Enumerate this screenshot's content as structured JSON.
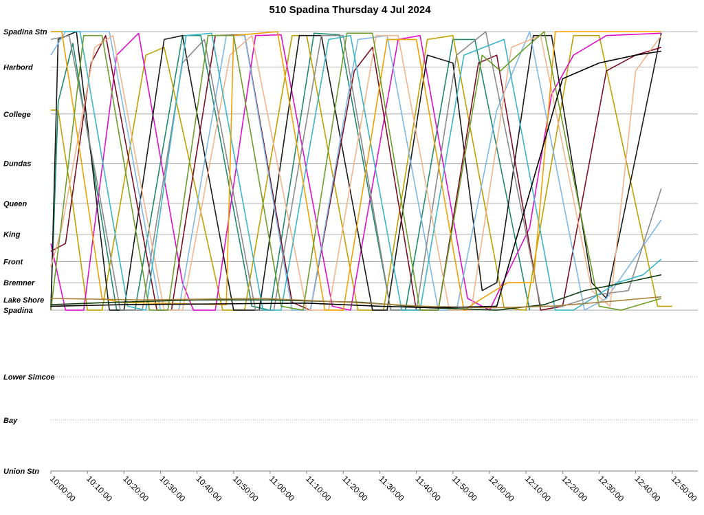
{
  "chart_data": {
    "type": "line",
    "title": "510 Spadina Thursday 4 Jul 2024",
    "x_axis": {
      "unit": "time of day",
      "min": "10:00:00",
      "max": "12:57:00",
      "tick_labels": [
        "10:00:00",
        "10:10:00",
        "10:20:00",
        "10:30:00",
        "10:40:00",
        "10:50:00",
        "11:00:00",
        "11:10:00",
        "11:20:00",
        "11:30:00",
        "11:40:00",
        "11:50:00",
        "12:00:00",
        "12:10:00",
        "12:20:00",
        "12:30:00",
        "12:40:00",
        "12:50:00"
      ]
    },
    "y_axis": {
      "unit": "stop (distance along route, km)",
      "stops": [
        {
          "name": "Spadina Stn",
          "km": 0.0,
          "line": "solid"
        },
        {
          "name": "Harbord",
          "km": 0.45,
          "line": "solid"
        },
        {
          "name": "College",
          "km": 1.05,
          "line": "solid"
        },
        {
          "name": "Dundas",
          "km": 1.68,
          "line": "solid"
        },
        {
          "name": "Queen",
          "km": 2.19,
          "line": "solid"
        },
        {
          "name": "King",
          "km": 2.58,
          "line": "solid"
        },
        {
          "name": "Front",
          "km": 2.93,
          "line": "solid"
        },
        {
          "name": "Bremner",
          "km": 3.2,
          "line": "solid"
        },
        {
          "name": "Lake Shore",
          "km": 3.42,
          "line": "none"
        },
        {
          "name": "Spadina",
          "km": 3.55,
          "line": "solid"
        },
        {
          "name": "Lower Simcoe",
          "km": 4.4,
          "line": "dotted"
        },
        {
          "name": "Bay",
          "km": 4.95,
          "line": "dotted"
        },
        {
          "name": "Union Stn",
          "km": 5.6,
          "line": "none"
        }
      ]
    },
    "series": [
      {
        "color": "#1f8a6e",
        "points": [
          [
            0,
            3.52
          ],
          [
            2,
            0.9
          ],
          [
            6,
            0.15
          ],
          [
            18,
            3.55
          ],
          [
            23,
            3.55
          ],
          [
            36,
            0.05
          ],
          [
            41,
            0.05
          ],
          [
            55,
            3.5
          ],
          [
            60,
            3.55
          ],
          [
            72,
            0.02
          ],
          [
            79,
            0.04
          ],
          [
            93,
            3.55
          ],
          [
            97,
            3.55
          ],
          [
            110,
            0.1
          ],
          [
            116,
            0.1
          ],
          [
            131,
            3.55
          ]
        ]
      },
      {
        "color": "#c0a000",
        "points": [
          [
            0,
            1.0
          ],
          [
            2,
            1.0
          ],
          [
            6,
            2.2
          ],
          [
            10,
            3.55
          ],
          [
            14,
            3.55
          ],
          [
            26,
            0.3
          ],
          [
            31,
            0.2
          ],
          [
            47,
            3.55
          ],
          [
            53,
            3.55
          ],
          [
            66,
            0.05
          ],
          [
            70,
            0.05
          ],
          [
            84,
            3.55
          ],
          [
            91,
            3.55
          ],
          [
            103,
            0.1
          ],
          [
            110,
            0.05
          ],
          [
            124,
            3.52
          ],
          [
            130,
            3.55
          ],
          [
            143,
            0.05
          ],
          [
            150,
            0.05
          ],
          [
            166,
            3.5
          ],
          [
            170,
            3.5
          ]
        ]
      },
      {
        "color": "#e010c8",
        "points": [
          [
            0,
            2.7
          ],
          [
            4,
            3.55
          ],
          [
            9,
            3.55
          ],
          [
            18,
            0.3
          ],
          [
            24,
            0.02
          ],
          [
            36,
            3.2
          ],
          [
            39,
            3.55
          ],
          [
            45,
            3.55
          ],
          [
            56,
            0.05
          ],
          [
            63,
            0.04
          ],
          [
            77,
            3.5
          ],
          [
            82,
            3.55
          ],
          [
            95,
            0.1
          ],
          [
            101,
            0.05
          ],
          [
            114,
            3.4
          ],
          [
            120,
            3.55
          ],
          [
            131,
            2.5
          ],
          [
            137,
            0.8
          ],
          [
            143,
            0.3
          ],
          [
            152,
            0.05
          ],
          [
            167,
            0.02
          ]
        ]
      },
      {
        "color": "#1a1a1a",
        "points": [
          [
            0,
            3.55
          ],
          [
            2,
            0.1
          ],
          [
            7,
            0.0
          ],
          [
            16,
            3.55
          ],
          [
            20,
            3.55
          ],
          [
            31,
            0.1
          ],
          [
            36,
            0.05
          ],
          [
            50,
            3.55
          ],
          [
            57,
            3.55
          ],
          [
            68,
            0.05
          ],
          [
            74,
            0.05
          ],
          [
            88,
            3.55
          ],
          [
            92,
            3.55
          ],
          [
            103,
            0.3
          ],
          [
            110,
            0.4
          ],
          [
            118,
            3.3
          ],
          [
            122,
            3.2
          ],
          [
            132,
            0.05
          ],
          [
            137,
            0.05
          ],
          [
            148,
            3.2
          ],
          [
            152,
            3.4
          ],
          [
            167,
            0.02
          ]
        ]
      },
      {
        "color": "#7a1025",
        "points": [
          [
            0,
            2.8
          ],
          [
            4,
            2.7
          ],
          [
            11,
            0.4
          ],
          [
            15,
            0.05
          ],
          [
            29,
            3.55
          ],
          [
            33,
            3.55
          ],
          [
            45,
            0.05
          ],
          [
            53,
            0.04
          ],
          [
            66,
            3.45
          ],
          [
            71,
            3.55
          ],
          [
            83,
            0.5
          ],
          [
            88,
            0.2
          ],
          [
            100,
            3.55
          ],
          [
            106,
            3.55
          ],
          [
            117,
            0.4
          ],
          [
            122,
            0.3
          ],
          [
            134,
            3.55
          ],
          [
            140,
            3.5
          ],
          [
            152,
            0.5
          ],
          [
            160,
            0.3
          ],
          [
            167,
            0.2
          ]
        ]
      },
      {
        "color": "#7fb7e6",
        "points": [
          [
            0,
            0.3
          ],
          [
            4,
            0.0
          ],
          [
            16,
            0.0
          ],
          [
            30,
            3.55
          ],
          [
            35,
            3.55
          ],
          [
            48,
            0.05
          ],
          [
            53,
            0.05
          ],
          [
            66,
            3.55
          ],
          [
            71,
            3.55
          ],
          [
            84,
            0.1
          ],
          [
            92,
            0.05
          ],
          [
            106,
            3.55
          ],
          [
            111,
            3.55
          ],
          [
            122,
            1.0
          ],
          [
            131,
            0.0
          ],
          [
            146,
            3.55
          ],
          [
            152,
            3.4
          ],
          [
            167,
            2.4
          ]
        ]
      },
      {
        "color": "#8a8a8a",
        "points": [
          [
            0,
            0.1
          ],
          [
            5,
            0.05
          ],
          [
            13,
            2.0
          ],
          [
            19,
            3.55
          ],
          [
            25,
            3.55
          ],
          [
            36,
            0.4
          ],
          [
            42,
            0.1
          ],
          [
            56,
            3.55
          ],
          [
            61,
            3.55
          ],
          [
            74,
            0.05
          ],
          [
            80,
            0.05
          ],
          [
            93,
            3.55
          ],
          [
            100,
            3.55
          ],
          [
            111,
            0.3
          ],
          [
            119,
            0.0
          ],
          [
            134,
            3.5
          ],
          [
            140,
            3.5
          ],
          [
            150,
            3.35
          ],
          [
            158,
            3.3
          ],
          [
            167,
            2.0
          ]
        ]
      },
      {
        "color": "#f2b48c",
        "points": [
          [
            0,
            3.0
          ],
          [
            3,
            2.5
          ],
          [
            12,
            0.2
          ],
          [
            17,
            0.05
          ],
          [
            31,
            3.55
          ],
          [
            36,
            3.55
          ],
          [
            49,
            0.3
          ],
          [
            55,
            0.05
          ],
          [
            70,
            3.55
          ],
          [
            76,
            3.55
          ],
          [
            89,
            0.05
          ],
          [
            95,
            0.05
          ],
          [
            109,
            3.55
          ],
          [
            115,
            3.55
          ],
          [
            126,
            0.2
          ],
          [
            134,
            0.05
          ],
          [
            148,
            3.3
          ],
          [
            153,
            3.5
          ],
          [
            160,
            0.5
          ],
          [
            167,
            0.05
          ]
        ]
      },
      {
        "color": "#3ab5c8",
        "points": [
          [
            0,
            0.0
          ],
          [
            8,
            0.0
          ],
          [
            21,
            3.5
          ],
          [
            26,
            3.55
          ],
          [
            37,
            0.05
          ],
          [
            44,
            0.02
          ],
          [
            58,
            3.55
          ],
          [
            63,
            3.55
          ],
          [
            76,
            0.1
          ],
          [
            82,
            0.05
          ],
          [
            96,
            3.55
          ],
          [
            101,
            3.55
          ],
          [
            113,
            0.3
          ],
          [
            124,
            0.1
          ],
          [
            138,
            3.55
          ],
          [
            143,
            3.55
          ],
          [
            155,
            3.2
          ],
          [
            162,
            3.1
          ],
          [
            167,
            2.9
          ]
        ]
      },
      {
        "color": "#f0a000",
        "points": [
          [
            0,
            0.0
          ],
          [
            3,
            0.0
          ],
          [
            14,
            3.4
          ],
          [
            19,
            3.45
          ],
          [
            48,
            3.48
          ],
          [
            50,
            0.05
          ],
          [
            62,
            0.0
          ],
          [
            75,
            3.55
          ],
          [
            80,
            3.55
          ],
          [
            92,
            0.1
          ],
          [
            100,
            0.1
          ],
          [
            113,
            3.55
          ],
          [
            118,
            3.4
          ],
          [
            125,
            3.2
          ],
          [
            132,
            3.2
          ],
          [
            138,
            0.0
          ],
          [
            167,
            0.0
          ]
        ]
      },
      {
        "color": "#6b9e2a",
        "points": [
          [
            0,
            3.55
          ],
          [
            4,
            2.0
          ],
          [
            9,
            0.05
          ],
          [
            14,
            0.05
          ],
          [
            27,
            3.55
          ],
          [
            32,
            3.55
          ],
          [
            43,
            0.05
          ],
          [
            50,
            0.05
          ],
          [
            63,
            3.5
          ],
          [
            69,
            3.55
          ],
          [
            81,
            0.02
          ],
          [
            88,
            0.02
          ],
          [
            101,
            3.55
          ],
          [
            106,
            3.55
          ],
          [
            118,
            0.3
          ],
          [
            123,
            0.5
          ],
          [
            130,
            0.2
          ],
          [
            135,
            0.0
          ],
          [
            150,
            3.5
          ],
          [
            156,
            3.55
          ],
          [
            167,
            3.4
          ]
        ]
      },
      {
        "color": "#0f3d0f",
        "points": [
          [
            0,
            3.48
          ],
          [
            17,
            3.45
          ],
          [
            40,
            3.42
          ],
          [
            60,
            3.42
          ],
          [
            85,
            3.45
          ],
          [
            104,
            3.52
          ],
          [
            122,
            3.55
          ],
          [
            135,
            3.48
          ],
          [
            146,
            3.3
          ],
          [
            157,
            3.2
          ],
          [
            167,
            3.1
          ]
        ]
      },
      {
        "color": "#a9813c",
        "points": [
          [
            0,
            3.4
          ],
          [
            25,
            3.42
          ],
          [
            58,
            3.4
          ],
          [
            82,
            3.45
          ],
          [
            102,
            3.5
          ],
          [
            120,
            3.52
          ],
          [
            137,
            3.5
          ],
          [
            150,
            3.45
          ],
          [
            162,
            3.4
          ],
          [
            167,
            3.38
          ]
        ]
      },
      {
        "color": "#000000",
        "points": [
          [
            0,
            3.5
          ],
          [
            20,
            3.48
          ],
          [
            45,
            3.47
          ],
          [
            70,
            3.46
          ],
          [
            90,
            3.5
          ],
          [
            105,
            3.52
          ],
          [
            122,
            3.5
          ],
          [
            140,
            0.6
          ],
          [
            150,
            0.4
          ],
          [
            160,
            0.3
          ],
          [
            167,
            0.25
          ]
        ]
      }
    ]
  }
}
